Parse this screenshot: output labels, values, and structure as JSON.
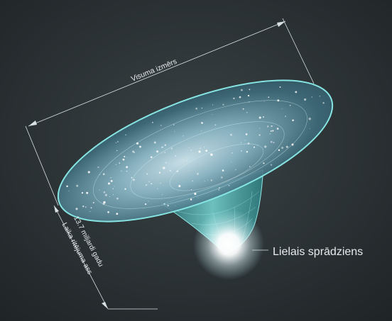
{
  "labels": {
    "universe_size": "Visuma izmērs",
    "age": "13.7 miljardi gadu",
    "time_axis": "Laika ritējuma ass",
    "big_bang": "Lielais sprādziens"
  },
  "colors": {
    "background": "#2b3235",
    "funnel_edge": "#7fe3e0",
    "funnel_fill": "#3d8f95",
    "glow": "#ffffff",
    "line": "#d8e2e4"
  }
}
